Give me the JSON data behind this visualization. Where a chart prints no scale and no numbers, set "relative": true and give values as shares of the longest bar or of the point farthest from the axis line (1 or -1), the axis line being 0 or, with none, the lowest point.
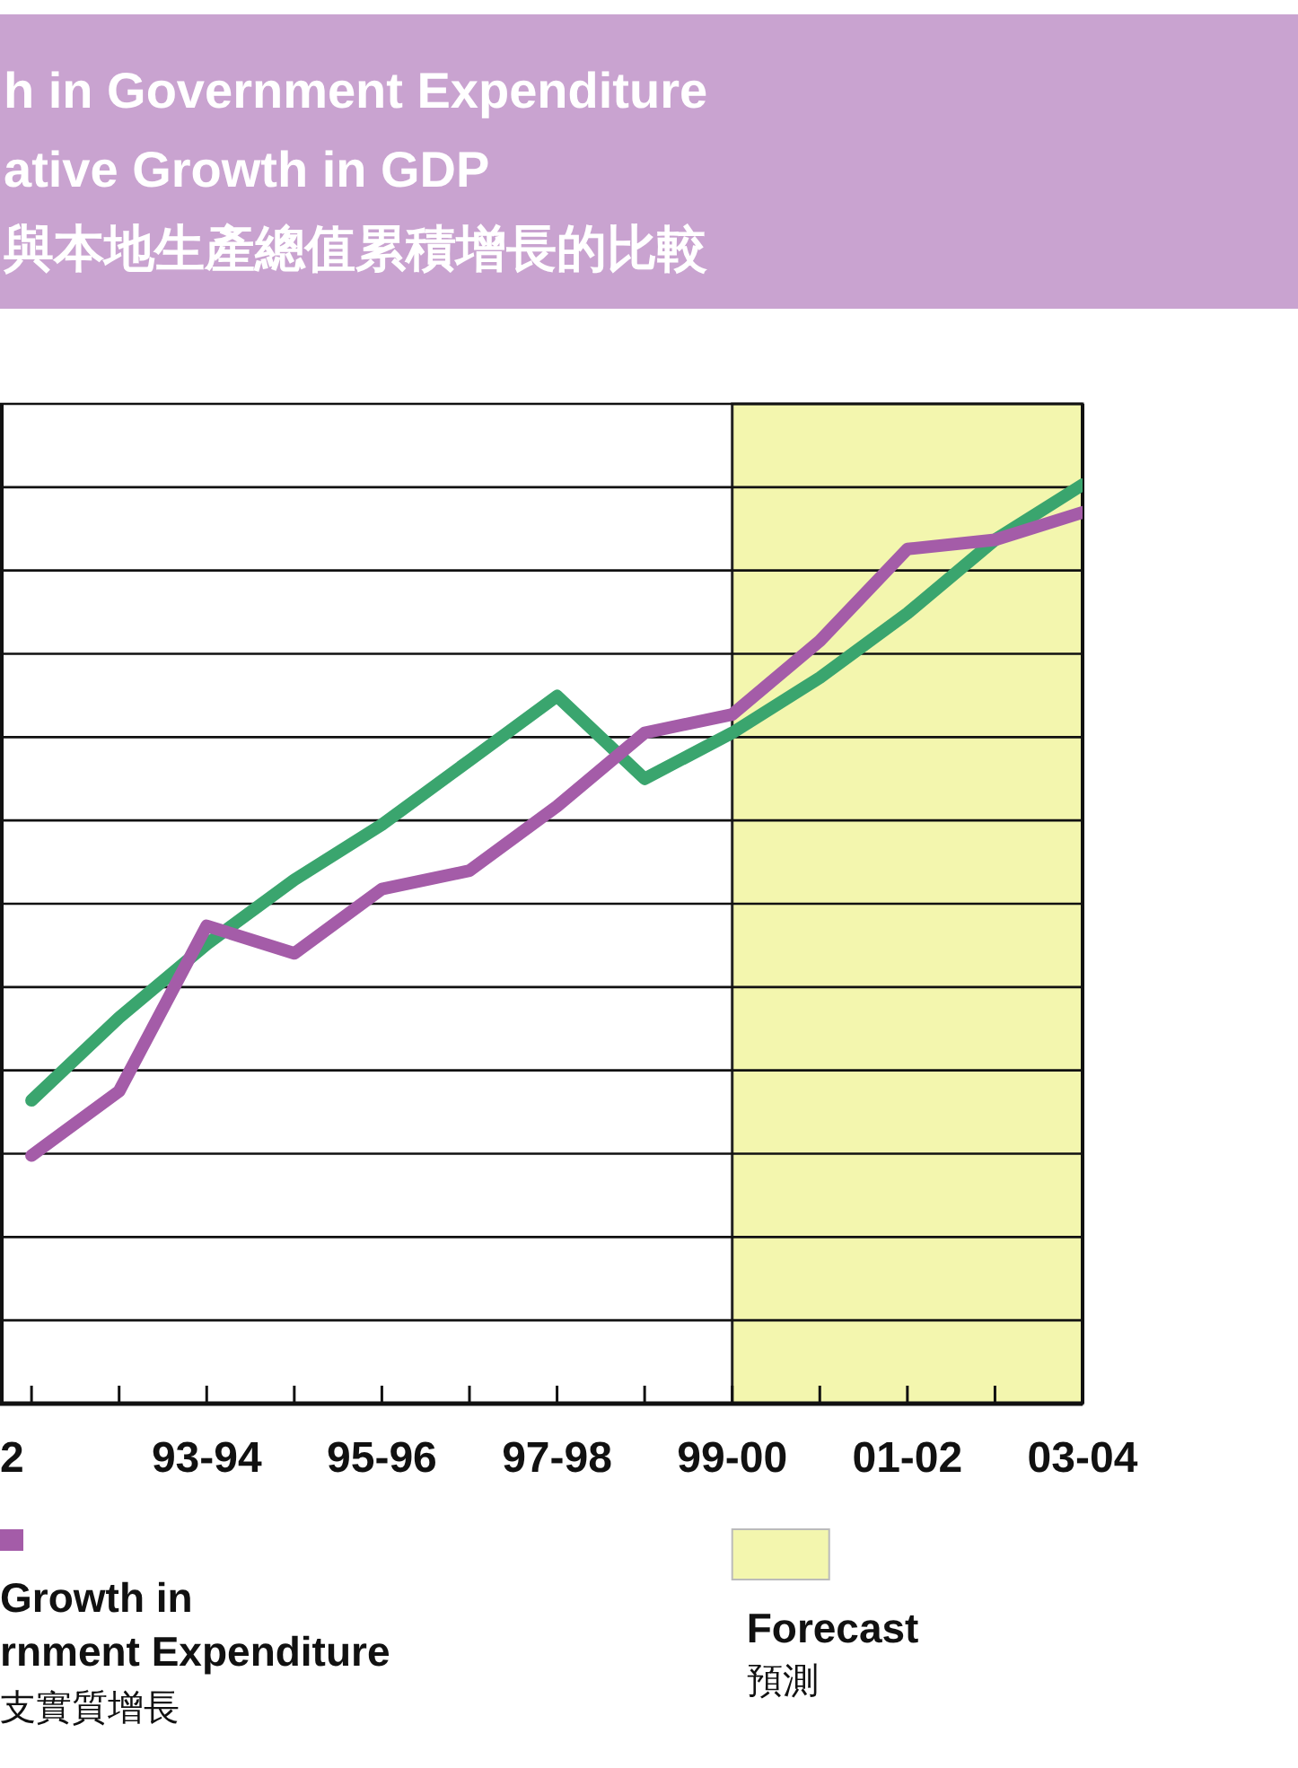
{
  "chart_data": {
    "type": "line",
    "title": "h in Government Expenditure\native Growth in GDP\n與本地生產總值累積增長的比較",
    "categories": [
      "2",
      null,
      "93-94",
      null,
      "95-96",
      null,
      "97-98",
      null,
      "99-00",
      null,
      "01-02",
      null,
      "03-04"
    ],
    "relative": true,
    "series": [
      {
        "name": "Growth in\nrnment Expenditure\n支實質增長",
        "color": "#a45ca8",
        "values": [
          0.27,
          0.34,
          0.52,
          0.49,
          0.56,
          0.58,
          0.65,
          0.73,
          0.75,
          0.83,
          0.93,
          0.94,
          0.97
        ]
      },
      {
        "color": "#3aa56e",
        "values": [
          0.33,
          0.42,
          0.5,
          0.57,
          0.63,
          0.7,
          0.77,
          0.68,
          0.73,
          0.79,
          0.86,
          0.94,
          1.0
        ]
      }
    ],
    "bands": [
      {
        "axis": "x",
        "from": "99-00",
        "to": "03-04",
        "label": "Forecast\n預測",
        "color": "#f3f6ae"
      }
    ],
    "grid": true,
    "legend": "bottom",
    "line_style": "solid",
    "marker": "none"
  }
}
